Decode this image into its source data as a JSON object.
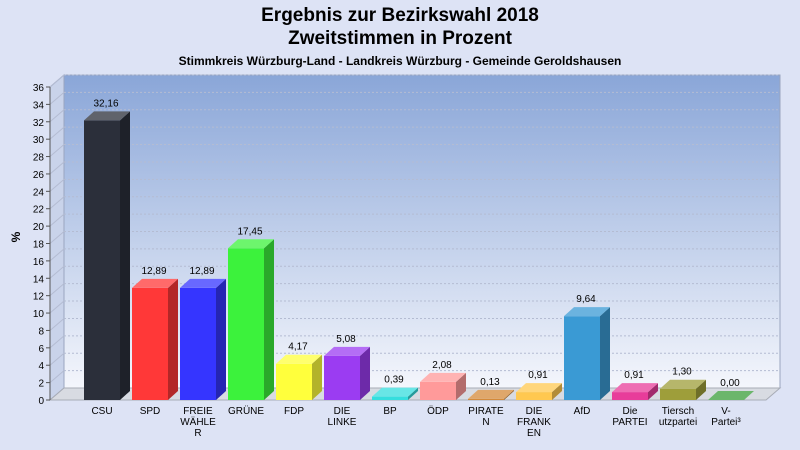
{
  "chart_data": {
    "type": "bar",
    "title_line1": "Ergebnis zur Bezirkswahl 2018",
    "title_line2": "Zweitstimmen in Prozent",
    "subtitle": "Stimmkreis Würzburg-Land - Landkreis Würzburg - Gemeinde Geroldshausen",
    "ylabel": "%",
    "xlabel": "",
    "ylim": [
      0,
      36
    ],
    "ytick_step": 2,
    "yticks": [
      "0",
      "2",
      "4",
      "6",
      "8",
      "10",
      "12",
      "14",
      "16",
      "18",
      "20",
      "22",
      "24",
      "26",
      "28",
      "30",
      "32",
      "34",
      "36"
    ],
    "grid": true,
    "categories": [
      [
        "CSU"
      ],
      [
        "SPD"
      ],
      [
        "FREIE",
        "WÄHLE",
        "R"
      ],
      [
        "GRÜNE"
      ],
      [
        "FDP"
      ],
      [
        "DIE",
        "LINKE"
      ],
      [
        "BP"
      ],
      [
        "ÖDP"
      ],
      [
        "PIRATE",
        "N"
      ],
      [
        "DIE",
        "FRANK",
        "EN"
      ],
      [
        "AfD"
      ],
      [
        "Die",
        "PARTEI"
      ],
      [
        "Tiersch",
        "utzpartei"
      ],
      [
        "V-",
        "Partei³"
      ]
    ],
    "values": [
      32.16,
      12.89,
      12.89,
      17.45,
      4.17,
      5.08,
      0.39,
      2.08,
      0.13,
      0.91,
      9.64,
      0.91,
      1.3,
      0.0
    ],
    "value_labels": [
      "32,16",
      "12,89",
      "12,89",
      "17,45",
      "4,17",
      "5,08",
      "0,39",
      "2,08",
      "0,13",
      "0,91",
      "9,64",
      "0,91",
      "1,30",
      "0,00"
    ],
    "colors": [
      "#2b2f3a",
      "#ff3838",
      "#3535ff",
      "#3cf23c",
      "#ffff3c",
      "#9b3cf2",
      "#35dede",
      "#ff9a9a",
      "#d48a3a",
      "#ffc850",
      "#3a9ad4",
      "#e83c9a",
      "#9e9e3a",
      "#3a9e3a"
    ],
    "plot_background_top": "#8aa6d8",
    "plot_background_bottom": "#f4f6fc"
  }
}
